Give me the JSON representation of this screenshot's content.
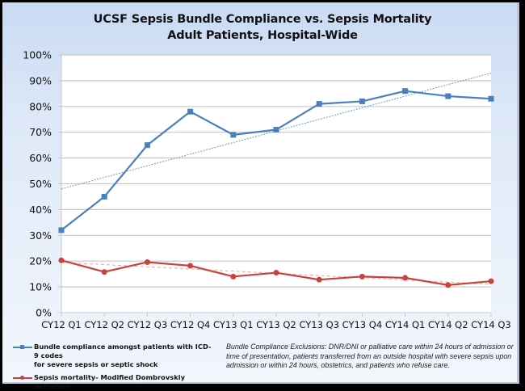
{
  "title_line1": "UCSF Sepsis Bundle Compliance vs. Sepsis Mortality",
  "title_line2": "Adult Patients, Hospital-Wide",
  "legend": [
    {
      "label_line1": "Bundle compliance amongst patients with ICD-9 codes",
      "label_line2": "for severe sepsis or septic shock",
      "color": "#4a7fc1",
      "marker": "square"
    },
    {
      "label_line1": "Sepsis mortality- Modified Dombrovskiy definition",
      "color": "#c9423c",
      "marker": "circle"
    }
  ],
  "note": "Bundle Compliance Exclusions:  DNR/DNI or palliative care within 24 hours of admission or time of presentation, patients transferred from an outside hospital with severe sepsis upon admission or within 24 hours, obstetrics, and patients who refuse care.",
  "chart_data": {
    "type": "line",
    "title": "UCSF Sepsis Bundle Compliance vs. Sepsis Mortality Adult Patients, Hospital-Wide",
    "xlabel": "",
    "ylabel": "",
    "ylim": [
      0,
      100
    ],
    "yticks": [
      0,
      10,
      20,
      30,
      40,
      50,
      60,
      70,
      80,
      90,
      100
    ],
    "ytick_labels": [
      "0%",
      "10%",
      "20%",
      "30%",
      "40%",
      "50%",
      "60%",
      "70%",
      "80%",
      "90%",
      "100%"
    ],
    "categories": [
      "CY12 Q1",
      "CY12 Q2",
      "CY12 Q3",
      "CY12 Q4",
      "CY13 Q1",
      "CY13 Q2",
      "CY13 Q3",
      "CY13 Q4",
      "CY14 Q1",
      "CY14 Q2",
      "CY14 Q3"
    ],
    "grid": true,
    "legend_position": "bottom-left",
    "series": [
      {
        "name": "Bundle compliance amongst patients with ICD-9 codes for severe sepsis or septic shock",
        "color": "#4a7fc1",
        "marker": "square",
        "values": [
          32,
          45,
          65,
          78,
          69,
          71,
          81,
          82,
          86,
          84,
          83
        ],
        "trendline": {
          "style": "dotted",
          "start": 48,
          "end": 93
        }
      },
      {
        "name": "Sepsis mortality- Modified Dombrovskiy definition",
        "color": "#c9423c",
        "marker": "circle",
        "values": [
          20.3,
          15.8,
          19.6,
          18.2,
          14.0,
          15.5,
          12.8,
          14.0,
          13.5,
          10.7,
          12.2
        ],
        "trendline": {
          "style": "dashed",
          "start": 19.5,
          "end": 11
        }
      }
    ]
  }
}
